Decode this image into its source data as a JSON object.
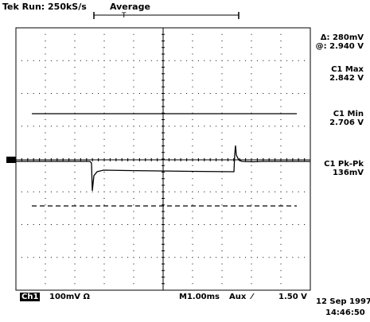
{
  "header": {
    "run_status": "Tek Run: 250kS/s",
    "acq_mode": "Average"
  },
  "trigger_marker": "T",
  "measurements": {
    "delta_label": "Δ: 280mV",
    "at_label": "@: 2.940 V",
    "c1_max_label": "C1 Max",
    "c1_max_value": "2.842 V",
    "c1_min_label": "C1 Min",
    "c1_min_value": "2.706 V",
    "c1_pkpk_label": "C1 Pk-Pk",
    "c1_pkpk_value": "136mV"
  },
  "bottom": {
    "channel_badge": "Ch1",
    "channel_scale": "100mV Ω",
    "timebase": "M1.00ms",
    "trigger_source": "Aux",
    "trigger_slope": "⁄",
    "trigger_level": "1.50 V",
    "date": "12 Sep 1997",
    "time": "14:46:50"
  },
  "colors": {
    "trace": "#000000",
    "grid_dots": "#000000",
    "background": "#ffffff"
  }
}
